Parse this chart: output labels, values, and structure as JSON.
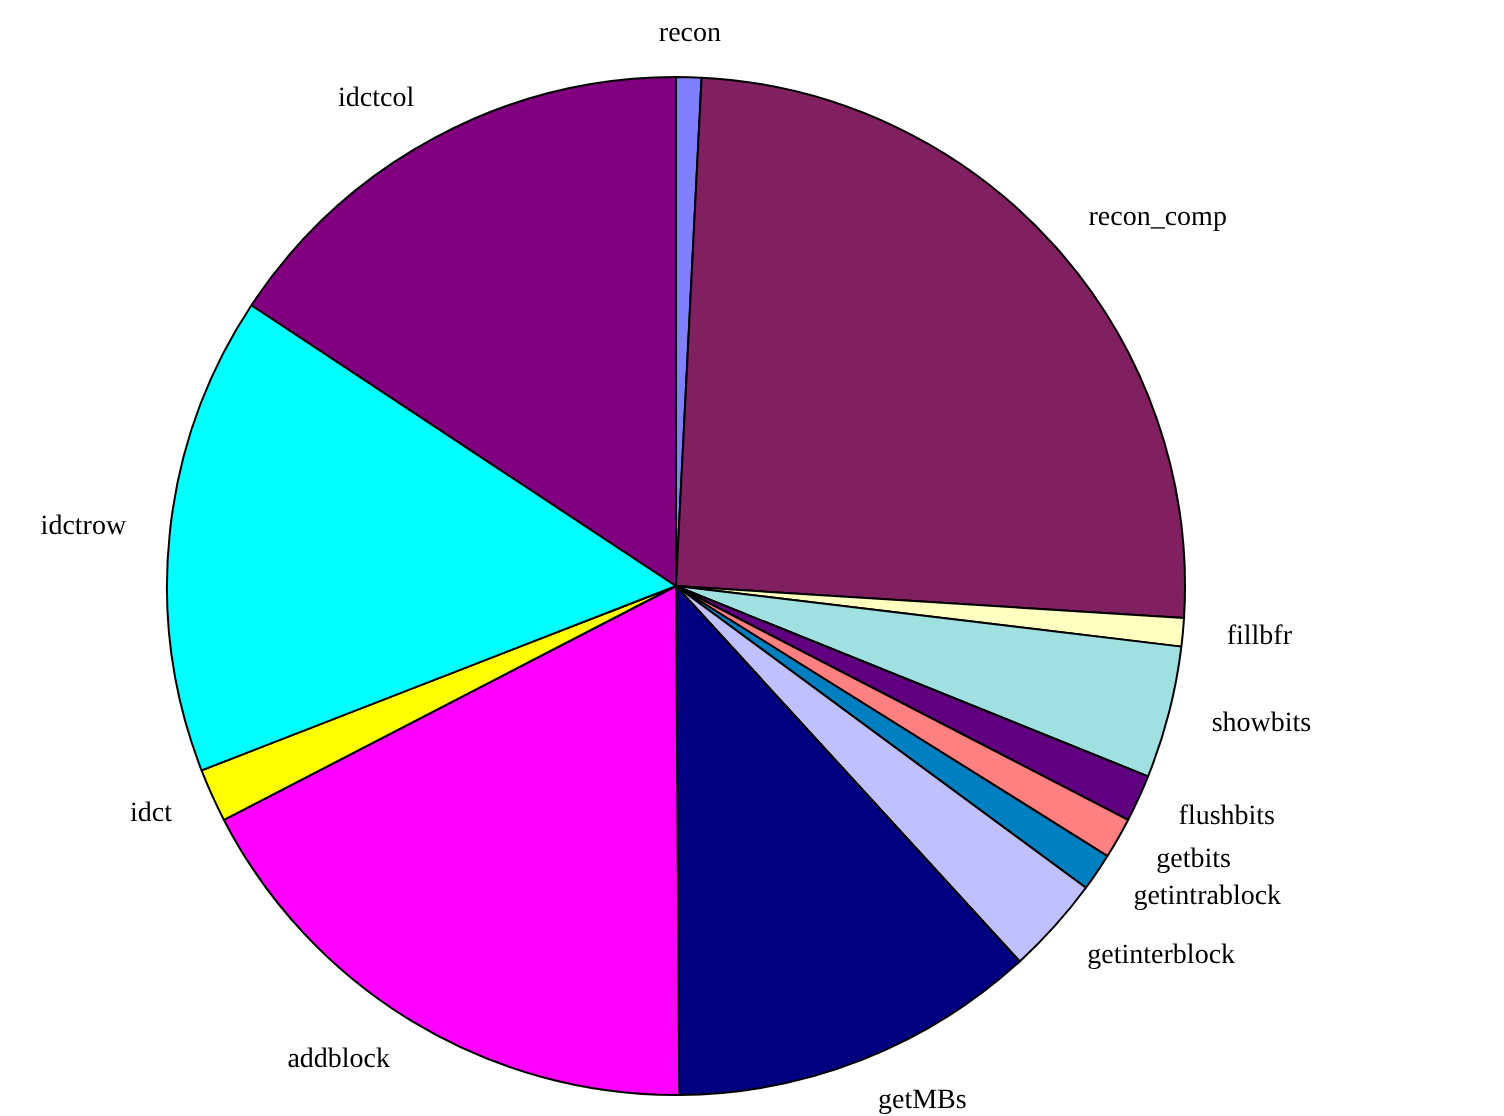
{
  "chart_data": {
    "type": "pie",
    "categories": [
      "recon",
      "recon_comp",
      "fillbfr",
      "showbits",
      "flushbits",
      "getbits",
      "getintrablock",
      "getinterblock",
      "getMBs",
      "addblock",
      "idct",
      "idctrow",
      "idctcol"
    ],
    "values": [
      0.8,
      25.2,
      0.9,
      4.2,
      1.5,
      1.3,
      1.2,
      3.1,
      11.7,
      17.5,
      1.7,
      15.2,
      15.7
    ],
    "colors": [
      "#8080ff",
      "#802060",
      "#ffffc0",
      "#a0e0e0",
      "#600080",
      "#ff8080",
      "#0080c0",
      "#c0c0ff",
      "#000080",
      "#ff00ff",
      "#ffff00",
      "#00ffff",
      "#800080"
    ],
    "legend": false
  }
}
